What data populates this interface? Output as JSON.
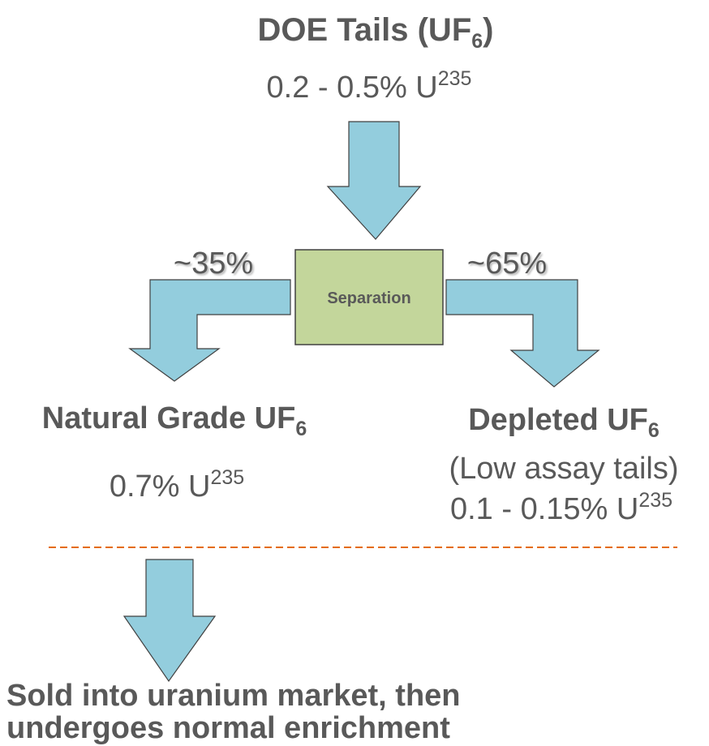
{
  "source": {
    "title": {
      "text": "DOE Tails (UF",
      "sub": "6",
      "end": ")"
    },
    "assay": {
      "text": "0.2 - 0.5% U",
      "sup": "235"
    }
  },
  "process": "Separation",
  "left_share": "~35%",
  "right_share": "~65%",
  "natural": {
    "title": {
      "text": "Natural Grade UF",
      "sub": "6"
    },
    "assay": {
      "text": "0.7% U",
      "sup": "235"
    }
  },
  "depleted": {
    "title": {
      "text": "Depleted UF",
      "sub": "6"
    },
    "note": "(Low assay tails)",
    "assay": {
      "text": "0.1 - 0.15% U",
      "sup": "235"
    }
  },
  "outcome": [
    "Sold into uranium market, then",
    "undergoes normal enrichment"
  ]
}
